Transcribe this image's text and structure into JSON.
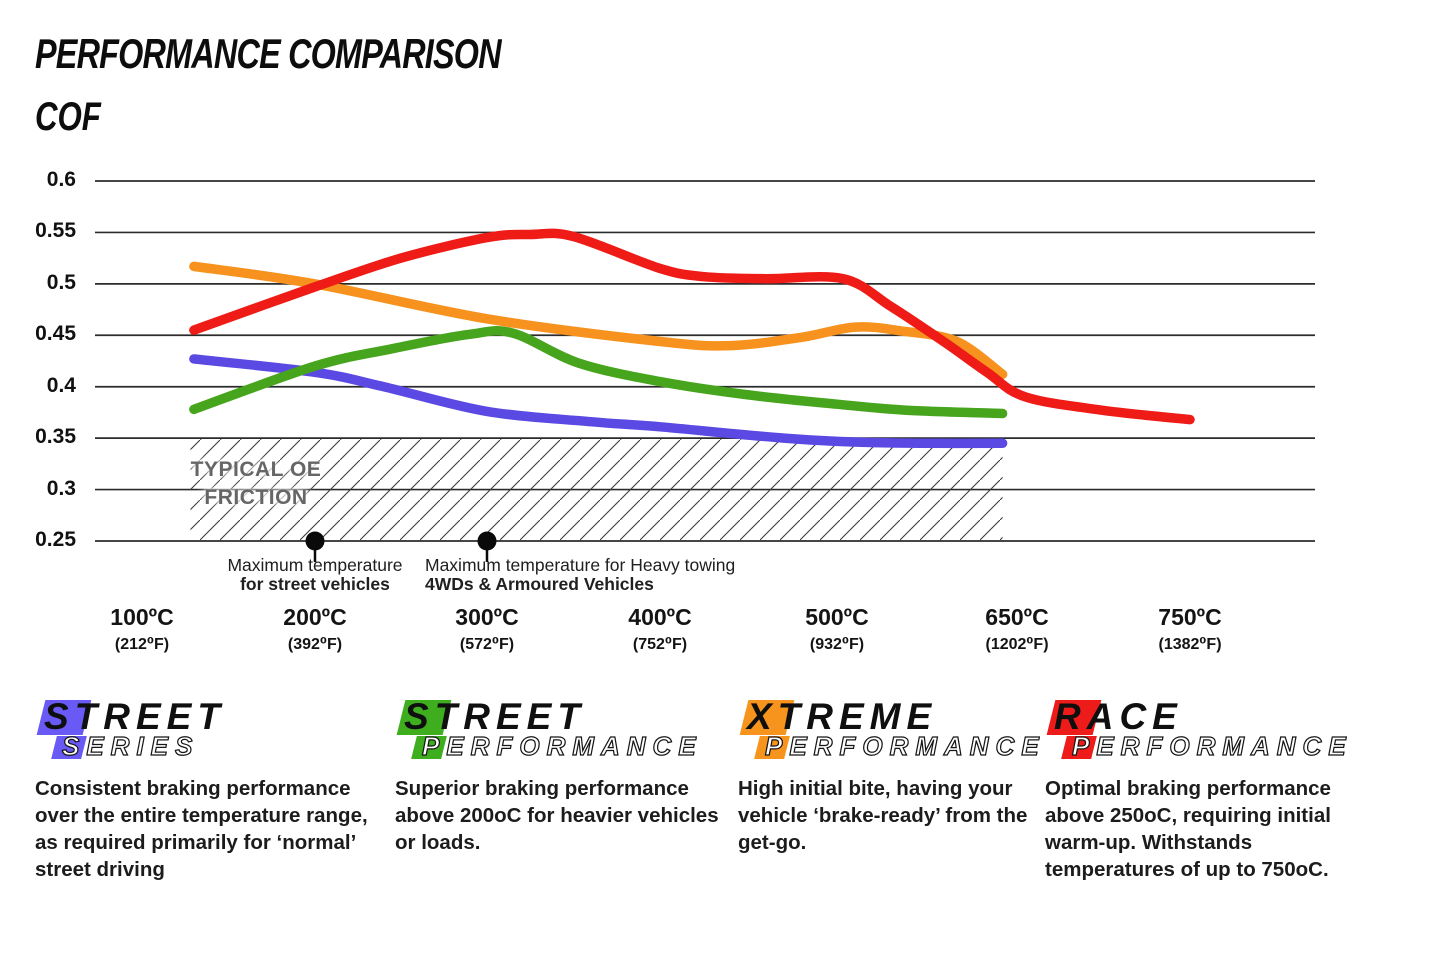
{
  "title": "PERFORMANCE COMPARISON",
  "chart_data": {
    "type": "line",
    "title": "PERFORMANCE COMPARISON",
    "y_axis_label": "COF",
    "ylim": [
      0.25,
      0.6
    ],
    "grid": "horizontal-only",
    "y_ticks": [
      {
        "value": 0.6,
        "label": "0.6"
      },
      {
        "value": 0.55,
        "label": "0.55"
      },
      {
        "value": 0.5,
        "label": "0.5"
      },
      {
        "value": 0.45,
        "label": "0.45"
      },
      {
        "value": 0.4,
        "label": "0.4"
      },
      {
        "value": 0.35,
        "label": "0.35"
      },
      {
        "value": 0.3,
        "label": "0.3"
      },
      {
        "value": 0.25,
        "label": "0.25"
      }
    ],
    "x_ticks": [
      {
        "temp": 100,
        "label": "100ºC",
        "sub": "(212⁰F)"
      },
      {
        "temp": 200,
        "label": "200ºC",
        "sub": "(392⁰F)"
      },
      {
        "temp": 300,
        "label": "300ºC",
        "sub": "(572⁰F)"
      },
      {
        "temp": 400,
        "label": "400ºC",
        "sub": "(752⁰F)"
      },
      {
        "temp": 500,
        "label": "500ºC",
        "sub": "(932⁰F)"
      },
      {
        "temp": 650,
        "label": "650ºC",
        "sub": "(1202⁰F)"
      },
      {
        "temp": 750,
        "label": "750ºC",
        "sub": "(1382⁰F)"
      }
    ],
    "oe_zone": {
      "line1": "TYPICAL OE",
      "line2": "FRICTION",
      "cof_top": 0.35,
      "cof_bottom": 0.25,
      "start_temp": 128,
      "end_temp": 638
    },
    "markers": [
      {
        "temp": 200,
        "align": "center",
        "offset": 0,
        "line1": "Maximum temperature",
        "line2": "for street vehicles"
      },
      {
        "temp": 300,
        "align": "left",
        "offset": -62,
        "line1": "Maximum temperature for Heavy towing",
        "line2": "4WDs & Armoured Vehicles"
      }
    ],
    "series": [
      {
        "id": "street-series",
        "name": "Street Series",
        "color": "#5a49e2",
        "points": [
          [
            130,
            0.427
          ],
          [
            200,
            0.414
          ],
          [
            240,
            0.4
          ],
          [
            300,
            0.376
          ],
          [
            360,
            0.366
          ],
          [
            400,
            0.361
          ],
          [
            470,
            0.35
          ],
          [
            520,
            0.346
          ],
          [
            580,
            0.345
          ],
          [
            638,
            0.345
          ]
        ]
      },
      {
        "id": "street-performance",
        "name": "Street Performance",
        "color": "#46a41d",
        "points": [
          [
            130,
            0.378
          ],
          [
            200,
            0.42
          ],
          [
            245,
            0.437
          ],
          [
            290,
            0.451
          ],
          [
            315,
            0.452
          ],
          [
            353,
            0.423
          ],
          [
            400,
            0.405
          ],
          [
            450,
            0.392
          ],
          [
            500,
            0.383
          ],
          [
            560,
            0.377
          ],
          [
            638,
            0.374
          ]
        ]
      },
      {
        "id": "xtreme-performance",
        "name": "Xtreme Performance",
        "color": "#f6921d",
        "points": [
          [
            130,
            0.517
          ],
          [
            200,
            0.5
          ],
          [
            300,
            0.466
          ],
          [
            400,
            0.444
          ],
          [
            440,
            0.44
          ],
          [
            480,
            0.448
          ],
          [
            515,
            0.458
          ],
          [
            555,
            0.454
          ],
          [
            600,
            0.444
          ],
          [
            638,
            0.412
          ]
        ]
      },
      {
        "id": "race-performance",
        "name": "Race Performance",
        "color": "#ee1b17",
        "points": [
          [
            130,
            0.455
          ],
          [
            200,
            0.497
          ],
          [
            250,
            0.525
          ],
          [
            300,
            0.545
          ],
          [
            325,
            0.548
          ],
          [
            350,
            0.546
          ],
          [
            400,
            0.515
          ],
          [
            425,
            0.507
          ],
          [
            460,
            0.505
          ],
          [
            505,
            0.505
          ],
          [
            545,
            0.478
          ],
          [
            590,
            0.443
          ],
          [
            625,
            0.414
          ],
          [
            655,
            0.39
          ],
          [
            700,
            0.377
          ],
          [
            750,
            0.368
          ]
        ]
      }
    ]
  },
  "legend_cards": [
    {
      "id": "street-series",
      "word1": "STREET",
      "word2": "SERIES",
      "color": "#6a5af5",
      "description": "Consistent braking performance over the entire temperature range, as required primarily for ‘normal’ street driving"
    },
    {
      "id": "street-performance",
      "word1": "STREET",
      "word2": "PERFORMANCE",
      "color": "#3eae1f",
      "description": "Superior braking performance above 200oC for heavier vehicles or loads."
    },
    {
      "id": "xtreme-performance",
      "word1": "XTREME",
      "word2": "PERFORMANCE",
      "color": "#f7941d",
      "description": "High initial bite, having your vehicle ‘brake-ready’ from the get-go."
    },
    {
      "id": "race-performance",
      "word1": "RACE",
      "word2": "PERFORMANCE",
      "color": "#ee1b1b",
      "description": "Optimal braking performance above 250oC, requiring initial warm-up. Withstands temperatures of up to 750oC."
    }
  ]
}
